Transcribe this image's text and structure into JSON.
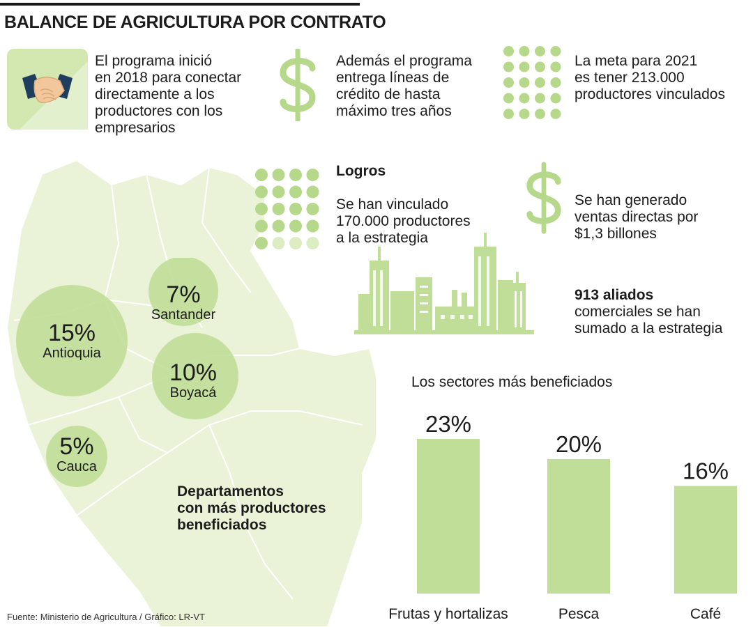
{
  "title": "BALANCE DE AGRICULTURA POR CONTRATO",
  "facts": {
    "start": "El programa inició\nen 2018 para conectar\ndirectamente a los\nproductores con los\nempresarios",
    "credit": "Además el programa\nentrega líneas de\ncrédito de hasta\nmáximo tres años",
    "goal": "La meta para 2021\nes tener 213.000\nproductores vinculados"
  },
  "logros": {
    "heading": "Logros",
    "linked": "Se han vinculado\n170.000 productores\na la estrategia",
    "sales": "Se han generado\nventas directas por\n$1,3 billones",
    "allies_bold": "913 aliados",
    "allies_rest": "comerciales se han\nsumado a la estrategia"
  },
  "map": {
    "caption": "Departamentos\ncon más productores\nbeneficiados",
    "departments": [
      {
        "name": "Antioquia",
        "pct": "15%",
        "value": 15
      },
      {
        "name": "Santander",
        "pct": "7%",
        "value": 7
      },
      {
        "name": "Boyacá",
        "pct": "10%",
        "value": 10
      },
      {
        "name": "Cauca",
        "pct": "5%",
        "value": 5
      }
    ]
  },
  "colors": {
    "accent": "#b6d88a",
    "accent_light": "#dcedc2",
    "map_fill": "#eaf2d7",
    "map_border": "#ffffff",
    "bubble": "#c1de98"
  },
  "chart_data": {
    "type": "bar",
    "title": "Los sectores más beneficiados",
    "categories": [
      "Frutas y hortalizas",
      "Pesca",
      "Café"
    ],
    "values": [
      23,
      20,
      16
    ],
    "labels": [
      "23%",
      "20%",
      "16%"
    ],
    "ylim": [
      0,
      23
    ],
    "xlabel": "",
    "ylabel": ""
  },
  "source": "Fuente: Ministerio de Agricultura / Gráfico: LR-VT"
}
